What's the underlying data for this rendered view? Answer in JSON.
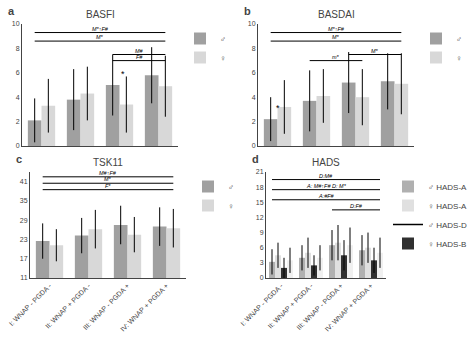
{
  "chart_data": [
    {
      "type": "bar",
      "panel_label": "a",
      "title": "BASFI",
      "categories": [
        "I: WNAP - PGDA -",
        "II: WNAP + PGDA -",
        "III: WNAP - PGDA +",
        "IV: WNAP + PGDA +"
      ],
      "series": [
        {
          "name": "♂",
          "color": "#a0a0a0",
          "values": [
            2.1,
            3.8,
            5.0,
            5.8
          ],
          "errors": [
            1.8,
            2.5,
            2.5,
            2.3
          ]
        },
        {
          "name": "♀",
          "color": "#d8d8d8",
          "values": [
            3.3,
            4.3,
            3.4,
            4.9
          ],
          "errors": [
            2.2,
            2.2,
            2.3,
            2.5
          ]
        }
      ],
      "ylim": [
        0,
        10
      ],
      "yticks": [
        0,
        2,
        4,
        6,
        8,
        10
      ],
      "grid": false,
      "legend": "upper right",
      "tick_labels": "y",
      "significance_lines": [
        {
          "x1": 0,
          "x2": 3,
          "y": 9.3,
          "label": "M*↑F#"
        },
        {
          "x1": 0,
          "x2": 3,
          "y": 8.6,
          "label": "M*"
        },
        {
          "x1": 2,
          "x2": 3,
          "y": 7.5,
          "label": "M#"
        },
        {
          "x1": 2,
          "x2": 3,
          "y": 7.0,
          "label": "F#"
        }
      ],
      "annotations": [
        {
          "x": 2.1,
          "y": 5.4,
          "text": "*"
        }
      ]
    },
    {
      "type": "bar",
      "panel_label": "b",
      "title": "BASDAI",
      "categories": [
        "I: WNAP - PGDA -",
        "II: WNAP + PGDA -",
        "III: WNAP - PGDA +",
        "IV: WNAP + PGDA +"
      ],
      "series": [
        {
          "name": "♂",
          "color": "#a0a0a0",
          "values": [
            2.2,
            3.7,
            5.2,
            5.3
          ],
          "errors": [
            1.8,
            2.5,
            2.5,
            2.3
          ]
        },
        {
          "name": "♀",
          "color": "#d8d8d8",
          "values": [
            3.2,
            4.1,
            4.0,
            5.1
          ],
          "errors": [
            2.2,
            2.2,
            2.3,
            2.5
          ]
        }
      ],
      "ylim": [
        0,
        10
      ],
      "yticks": [
        0,
        2,
        4,
        6,
        8,
        10
      ],
      "grid": false,
      "legend": "upper right",
      "tick_labels": "y",
      "significance_lines": [
        {
          "x1": 0,
          "x2": 3,
          "y": 9.3,
          "label": "M*↑F#"
        },
        {
          "x1": 0,
          "x2": 3,
          "y": 8.6,
          "label": "M*"
        },
        {
          "x1": 2,
          "x2": 3,
          "y": 7.5,
          "label": "M*"
        },
        {
          "x1": 1,
          "x2": 2,
          "y": 7.0,
          "label": "m*"
        }
      ],
      "annotations": [
        {
          "x": 0.0,
          "y": 2.6,
          "text": "*"
        }
      ]
    },
    {
      "type": "bar",
      "panel_label": "c",
      "title": "TSK11",
      "categories": [
        "I: WNAP - PGDA -",
        "II: WNAP + PGDA -",
        "III: WNAP - PGDA +",
        "IV: WNAP + PGDA +"
      ],
      "series": [
        {
          "name": "♂",
          "color": "#a0a0a0",
          "values": [
            22.5,
            24.2,
            27.5,
            27.0
          ],
          "errors": [
            5.5,
            5.5,
            6.0,
            6.0
          ]
        },
        {
          "name": "♀",
          "color": "#d8d8d8",
          "values": [
            21.2,
            26.2,
            24.5,
            26.5
          ],
          "errors": [
            5.0,
            6.0,
            5.5,
            6.0
          ]
        }
      ],
      "ylim": [
        11,
        44
      ],
      "yticks": [
        11,
        17,
        23,
        29,
        35,
        41
      ],
      "grid": false,
      "legend": "upper right",
      "significance_lines": [
        {
          "x1": 0,
          "x2": 3,
          "y": 42.5,
          "label": "M#↑F#"
        },
        {
          "x1": 0,
          "x2": 3,
          "y": 40.5,
          "label": "M*"
        },
        {
          "x1": 0,
          "x2": 3,
          "y": 38.5,
          "label": "F*"
        }
      ]
    },
    {
      "type": "bar",
      "panel_label": "d",
      "title": "HADS",
      "categories": [
        "I: WNAP - PGDA -",
        "II: WNAP + PGDA -",
        "III: WNAP - PGDA +",
        "IV: WNAP + PGDA +"
      ],
      "series": [
        {
          "name": "♂ HADS-A",
          "color": "#b0b0b0",
          "values": [
            3.2,
            4.0,
            6.5,
            5.5
          ],
          "errors": [
            2.5,
            2.5,
            3.0,
            3.0
          ]
        },
        {
          "name": "♀ HADS-A",
          "color": "#e0e0e0",
          "values": [
            4.5,
            5.0,
            7.0,
            6.0
          ],
          "errors": [
            2.5,
            3.0,
            3.5,
            3.0
          ]
        },
        {
          "name": "♂ HADS-D",
          "type": "line",
          "color": "#000000",
          "values": [
            null,
            null,
            null,
            null
          ]
        },
        {
          "name": "♀ HADS-B",
          "color": "#303030",
          "values": [
            2.0,
            2.5,
            4.5,
            3.5
          ],
          "errors": [
            2.0,
            2.0,
            3.0,
            2.5
          ]
        },
        {
          "color": "#f0f0f0",
          "values": [
            3.5,
            4.0,
            6.5,
            5.0
          ],
          "errors": [
            2.5,
            2.5,
            3.5,
            3.0
          ]
        }
      ],
      "ylim": [
        0,
        21
      ],
      "yticks": [
        0,
        3,
        6,
        9,
        12,
        15,
        18,
        21
      ],
      "grid": false,
      "legend": "upper right",
      "significance_lines": [
        {
          "x1": 0,
          "x2": 3,
          "y": 19.5,
          "label": "D:M#"
        },
        {
          "x1": 0,
          "x2": 3,
          "y": 17.5,
          "label": "A: M#↑F# D: M*"
        },
        {
          "x1": 0,
          "x2": 3,
          "y": 15.5,
          "label": "A:#F#"
        },
        {
          "x1": 2,
          "x2": 3,
          "y": 13.5,
          "label": "D:F#"
        }
      ]
    }
  ]
}
